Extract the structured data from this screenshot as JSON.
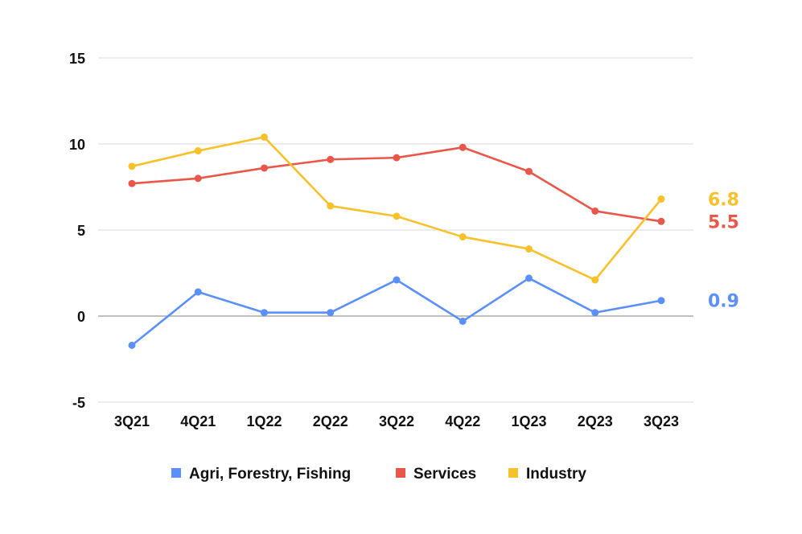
{
  "chart_data": {
    "type": "line",
    "categories": [
      "3Q21",
      "4Q21",
      "1Q22",
      "2Q22",
      "3Q22",
      "4Q22",
      "1Q23",
      "2Q23",
      "3Q23"
    ],
    "ylim": [
      -5,
      15
    ],
    "yticks": [
      15,
      10,
      5,
      0,
      -5
    ],
    "ytick_labels": [
      "15",
      "10",
      "5",
      "0",
      "-5"
    ],
    "grid": true,
    "legend_position": "bottom",
    "series": [
      {
        "name": "Agri, Forestry, Fishing",
        "color": "#5b8ff9",
        "values": [
          -1.7,
          1.4,
          0.2,
          0.2,
          2.1,
          -0.3,
          2.2,
          0.2,
          0.9
        ],
        "end_label": "0.9"
      },
      {
        "name": "Services",
        "color": "#e8574a",
        "values": [
          7.7,
          8.0,
          8.6,
          9.1,
          9.2,
          9.8,
          8.4,
          6.1,
          5.5
        ],
        "end_label": "5.5"
      },
      {
        "name": "Industry",
        "color": "#f7c12b",
        "values": [
          8.7,
          9.6,
          10.4,
          6.4,
          5.8,
          4.6,
          3.9,
          2.1,
          6.8
        ],
        "end_label": "6.8"
      }
    ]
  }
}
